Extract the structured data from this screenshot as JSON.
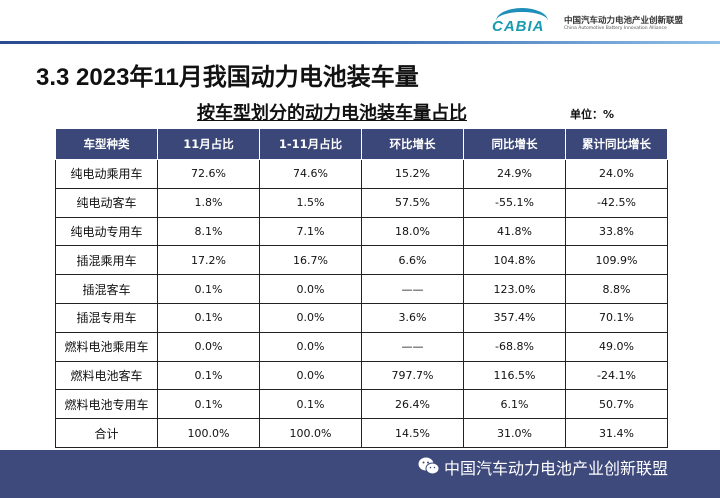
{
  "logo": {
    "brand": "CABIA",
    "name_cn": "中国汽车动力电池产业创新联盟",
    "name_en": "China Automotive Battery Innovation Alliance"
  },
  "title": "3.3  2023年11月我国动力电池装车量",
  "subtitle": "按车型划分的动力电池装车量占比",
  "unit": "单位：%",
  "table": {
    "headers": [
      "车型种类",
      "11月占比",
      "1-11月占比",
      "环比增长",
      "同比增长",
      "累计同比增长"
    ],
    "rows": [
      [
        "纯电动乘用车",
        "72.6%",
        "74.6%",
        "15.2%",
        "24.9%",
        "24.0%"
      ],
      [
        "纯电动客车",
        "1.8%",
        "1.5%",
        "57.5%",
        "-55.1%",
        "-42.5%"
      ],
      [
        "纯电动专用车",
        "8.1%",
        "7.1%",
        "18.0%",
        "41.8%",
        "33.8%"
      ],
      [
        "插混乘用车",
        "17.2%",
        "16.7%",
        "6.6%",
        "104.8%",
        "109.9%"
      ],
      [
        "插混客车",
        "0.1%",
        "0.0%",
        "——",
        "123.0%",
        "8.8%"
      ],
      [
        "插混专用车",
        "0.1%",
        "0.0%",
        "3.6%",
        "357.4%",
        "70.1%"
      ],
      [
        "燃料电池乘用车",
        "0.0%",
        "0.0%",
        "——",
        "-68.8%",
        "49.0%"
      ],
      [
        "燃料电池客车",
        "0.1%",
        "0.0%",
        "797.7%",
        "116.5%",
        "-24.1%"
      ],
      [
        "燃料电池专用车",
        "0.1%",
        "0.1%",
        "26.4%",
        "6.1%",
        "50.7%"
      ],
      [
        "合计",
        "100.0%",
        "100.0%",
        "14.5%",
        "31.0%",
        "31.4%"
      ]
    ]
  },
  "footer": {
    "icon": "wechat-icon",
    "text": "中国汽车动力电池产业创新联盟"
  },
  "colors": {
    "header_bg": "#3b4778",
    "footer_bg": "#3f4a7c",
    "logo": "#1a9bb0"
  }
}
